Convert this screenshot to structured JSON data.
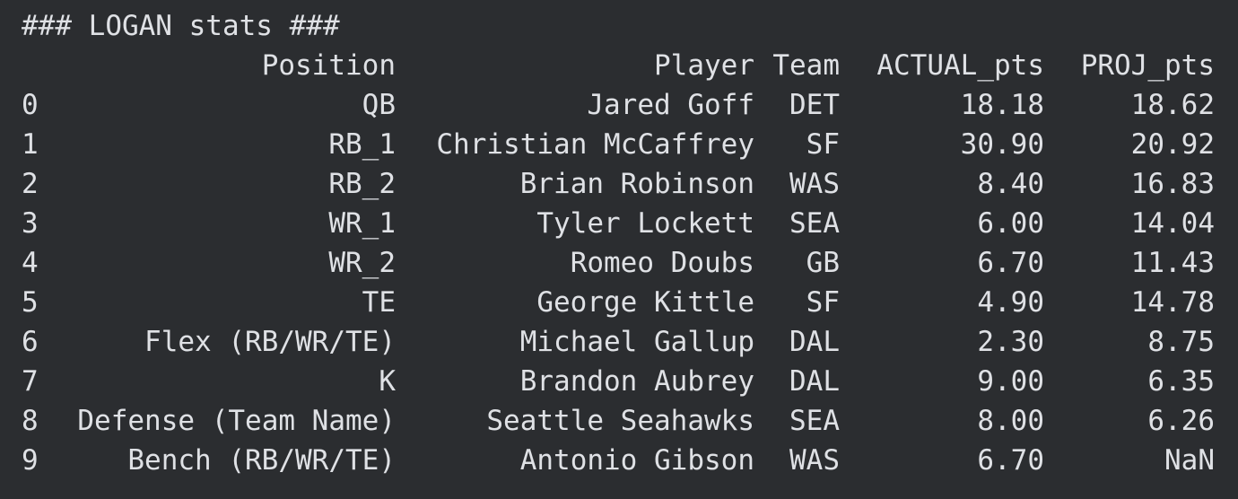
{
  "console": {
    "title": "### LOGAN stats ###",
    "columns": [
      "Position",
      "Player",
      "Team",
      "ACTUAL_pts",
      "PROJ_pts"
    ],
    "rows": [
      {
        "index": "0",
        "position": "QB",
        "player": "Jared Goff",
        "team": "DET",
        "actual": "18.18",
        "proj": "18.62"
      },
      {
        "index": "1",
        "position": "RB_1",
        "player": "Christian McCaffrey",
        "team": "SF",
        "actual": "30.90",
        "proj": "20.92"
      },
      {
        "index": "2",
        "position": "RB_2",
        "player": "Brian Robinson",
        "team": "WAS",
        "actual": "8.40",
        "proj": "16.83"
      },
      {
        "index": "3",
        "position": "WR_1",
        "player": "Tyler Lockett",
        "team": "SEA",
        "actual": "6.00",
        "proj": "14.04"
      },
      {
        "index": "4",
        "position": "WR_2",
        "player": "Romeo Doubs",
        "team": "GB",
        "actual": "6.70",
        "proj": "11.43"
      },
      {
        "index": "5",
        "position": "TE",
        "player": "George Kittle",
        "team": "SF",
        "actual": "4.90",
        "proj": "14.78"
      },
      {
        "index": "6",
        "position": "Flex (RB/WR/TE)",
        "player": "Michael Gallup",
        "team": "DAL",
        "actual": "2.30",
        "proj": "8.75"
      },
      {
        "index": "7",
        "position": "K",
        "player": "Brandon Aubrey",
        "team": "DAL",
        "actual": "9.00",
        "proj": "6.35"
      },
      {
        "index": "8",
        "position": "Defense (Team Name)",
        "player": "Seattle Seahawks",
        "team": "SEA",
        "actual": "8.00",
        "proj": "6.26"
      },
      {
        "index": "9",
        "position": "Bench (RB/WR/TE)",
        "player": "Antonio Gibson",
        "team": "WAS",
        "actual": "6.70",
        "proj": "NaN"
      }
    ]
  }
}
